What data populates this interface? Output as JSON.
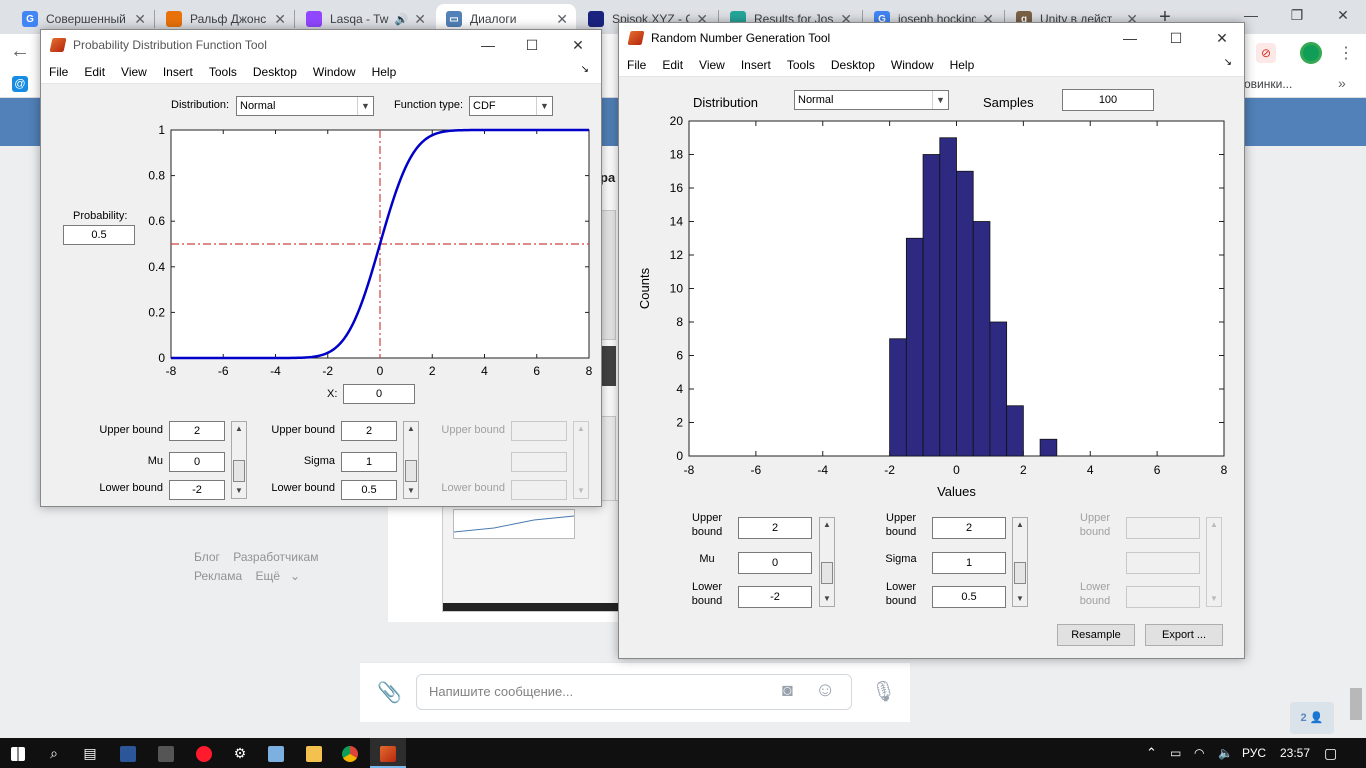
{
  "browser": {
    "tabs": [
      {
        "title": "Совершенный",
        "icon": "google-icon",
        "color": "#4285f4",
        "active": false
      },
      {
        "title": "Ральф Джонс",
        "icon": "bookmark-app-icon",
        "color": "#e8710a",
        "active": false
      },
      {
        "title": "Lasqa - Tw",
        "icon": "twitch-icon",
        "color": "#9146ff",
        "active": false
      },
      {
        "title": "Диалоги",
        "icon": "vk-messages-icon",
        "color": "#5181b8",
        "active": true
      },
      {
        "title": "Spisok.XYZ - C",
        "icon": "spisok-icon",
        "color": "#1a237e",
        "active": false
      },
      {
        "title": "Results for Jos",
        "icon": "bookmark-icon",
        "color": "#26a69a",
        "active": false
      },
      {
        "title": "joseph hocking",
        "icon": "google-icon",
        "color": "#4285f4",
        "active": false
      },
      {
        "title": "Unity в дейст",
        "icon": "goodreads-icon",
        "color": "#7a6247",
        "active": false
      }
    ],
    "bookmarks_tail": "овинки...",
    "bookmarks_more": "»"
  },
  "vk": {
    "heading_fragment": "ра",
    "footer": {
      "blog": "Блог",
      "developers": "Разработчикам",
      "ads": "Реклама",
      "more": "Ещё"
    },
    "message_placeholder": "Напишите сообщение...",
    "online_count": "2"
  },
  "pdf_tool": {
    "title": "Probability Distribution Function Tool",
    "menu": [
      "File",
      "Edit",
      "View",
      "Insert",
      "Tools",
      "Desktop",
      "Window",
      "Help"
    ],
    "distribution_label": "Distribution:",
    "distribution_value": "Normal",
    "function_type_label": "Function type:",
    "function_type_value": "CDF",
    "probability_label": "Probability:",
    "probability_value": "0.5",
    "x_label": "X:",
    "x_value": "0",
    "params": [
      {
        "upper_label": "Upper bound",
        "upper": "2",
        "name": "Mu",
        "value": "0",
        "lower_label": "Lower bound",
        "lower": "-2",
        "enabled": true
      },
      {
        "upper_label": "Upper bound",
        "upper": "2",
        "name": "Sigma",
        "value": "1",
        "lower_label": "Lower bound",
        "lower": "0.5",
        "enabled": true
      },
      {
        "upper_label": "Upper bound",
        "upper": "",
        "name": "",
        "value": "",
        "lower_label": "Lower bound",
        "lower": "",
        "enabled": false
      }
    ]
  },
  "rng_tool": {
    "title": "Random Number Generation Tool",
    "menu": [
      "File",
      "Edit",
      "View",
      "Insert",
      "Tools",
      "Desktop",
      "Window",
      "Help"
    ],
    "distribution_label": "Distribution",
    "distribution_value": "Normal",
    "samples_label": "Samples",
    "samples_value": "100",
    "params": [
      {
        "upper_label": "Upper bound",
        "upper": "2",
        "name": "Mu",
        "value": "0",
        "lower_label": "Lower bound",
        "lower": "-2",
        "enabled": true
      },
      {
        "upper_label": "Upper bound",
        "upper": "2",
        "name": "Sigma",
        "value": "1",
        "lower_label": "Lower bound",
        "lower": "0.5",
        "enabled": true
      },
      {
        "upper_label": "Upper bound",
        "upper": "",
        "name": "",
        "value": "",
        "lower_label": "Lower bound",
        "lower": "",
        "enabled": false
      }
    ],
    "resample_label": "Resample",
    "export_label": "Export ..."
  },
  "chart_data": [
    {
      "type": "line",
      "title": "",
      "xlabel": "",
      "ylabel": "",
      "xlim": [
        -8,
        8
      ],
      "ylim": [
        0,
        1
      ],
      "xticks": [
        "-8",
        "-6",
        "-4",
        "-2",
        "0",
        "2",
        "4",
        "6",
        "8"
      ],
      "yticks": [
        "0",
        "0.2",
        "0.4",
        "0.6",
        "0.8",
        "1"
      ],
      "function": "normal_cdf",
      "mu": 0,
      "sigma": 1,
      "crosshair": {
        "x": 0,
        "y": 0.5
      },
      "line_color": "#0000c8",
      "crosshair_color": "#d04040",
      "grid": false
    },
    {
      "type": "bar",
      "title": "",
      "xlabel": "Values",
      "ylabel": "Counts",
      "xlim": [
        -8,
        8
      ],
      "ylim": [
        0,
        20
      ],
      "xticks": [
        "-8",
        "-6",
        "-4",
        "-2",
        "0",
        "2",
        "4",
        "6",
        "8"
      ],
      "yticks": [
        "0",
        "2",
        "4",
        "6",
        "8",
        "10",
        "12",
        "14",
        "16",
        "18",
        "20"
      ],
      "bin_width": 0.5,
      "bins": [
        {
          "x": -1.75,
          "count": 7
        },
        {
          "x": -1.25,
          "count": 13
        },
        {
          "x": -0.75,
          "count": 18
        },
        {
          "x": -0.25,
          "count": 19
        },
        {
          "x": 0.25,
          "count": 17
        },
        {
          "x": 0.75,
          "count": 14
        },
        {
          "x": 1.25,
          "count": 8
        },
        {
          "x": 1.75,
          "count": 3
        },
        {
          "x": 2.25,
          "count": 0
        },
        {
          "x": 2.75,
          "count": 1
        }
      ],
      "bar_color": "#2e2a82",
      "grid": false
    }
  ],
  "taskbar": {
    "language": "РУС",
    "time": "23:57"
  }
}
